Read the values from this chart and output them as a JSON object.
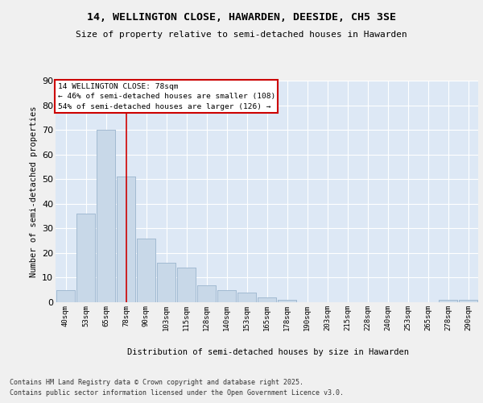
{
  "title_line1": "14, WELLINGTON CLOSE, HAWARDEN, DEESIDE, CH5 3SE",
  "title_line2": "Size of property relative to semi-detached houses in Hawarden",
  "xlabel": "Distribution of semi-detached houses by size in Hawarden",
  "ylabel": "Number of semi-detached properties",
  "categories": [
    "40sqm",
    "53sqm",
    "65sqm",
    "78sqm",
    "90sqm",
    "103sqm",
    "115sqm",
    "128sqm",
    "140sqm",
    "153sqm",
    "165sqm",
    "178sqm",
    "190sqm",
    "203sqm",
    "215sqm",
    "228sqm",
    "240sqm",
    "253sqm",
    "265sqm",
    "278sqm",
    "290sqm"
  ],
  "values": [
    5,
    36,
    70,
    51,
    26,
    16,
    14,
    7,
    5,
    4,
    2,
    1,
    0,
    0,
    0,
    0,
    0,
    0,
    0,
    1,
    1
  ],
  "bar_color": "#c8d8e8",
  "bar_edgecolor": "#a0b8d0",
  "vline_x_idx": 3,
  "vline_color": "#cc0000",
  "annotation_title": "14 WELLINGTON CLOSE: 78sqm",
  "annotation_line2": "← 46% of semi-detached houses are smaller (108)",
  "annotation_line3": "54% of semi-detached houses are larger (126) →",
  "annotation_box_color": "#cc0000",
  "annotation_bg": "#ffffff",
  "ylim": [
    0,
    90
  ],
  "yticks": [
    0,
    10,
    20,
    30,
    40,
    50,
    60,
    70,
    80,
    90
  ],
  "background_color": "#dde8f5",
  "grid_color": "#ffffff",
  "fig_bg": "#f0f0f0",
  "footer_line1": "Contains HM Land Registry data © Crown copyright and database right 2025.",
  "footer_line2": "Contains public sector information licensed under the Open Government Licence v3.0."
}
